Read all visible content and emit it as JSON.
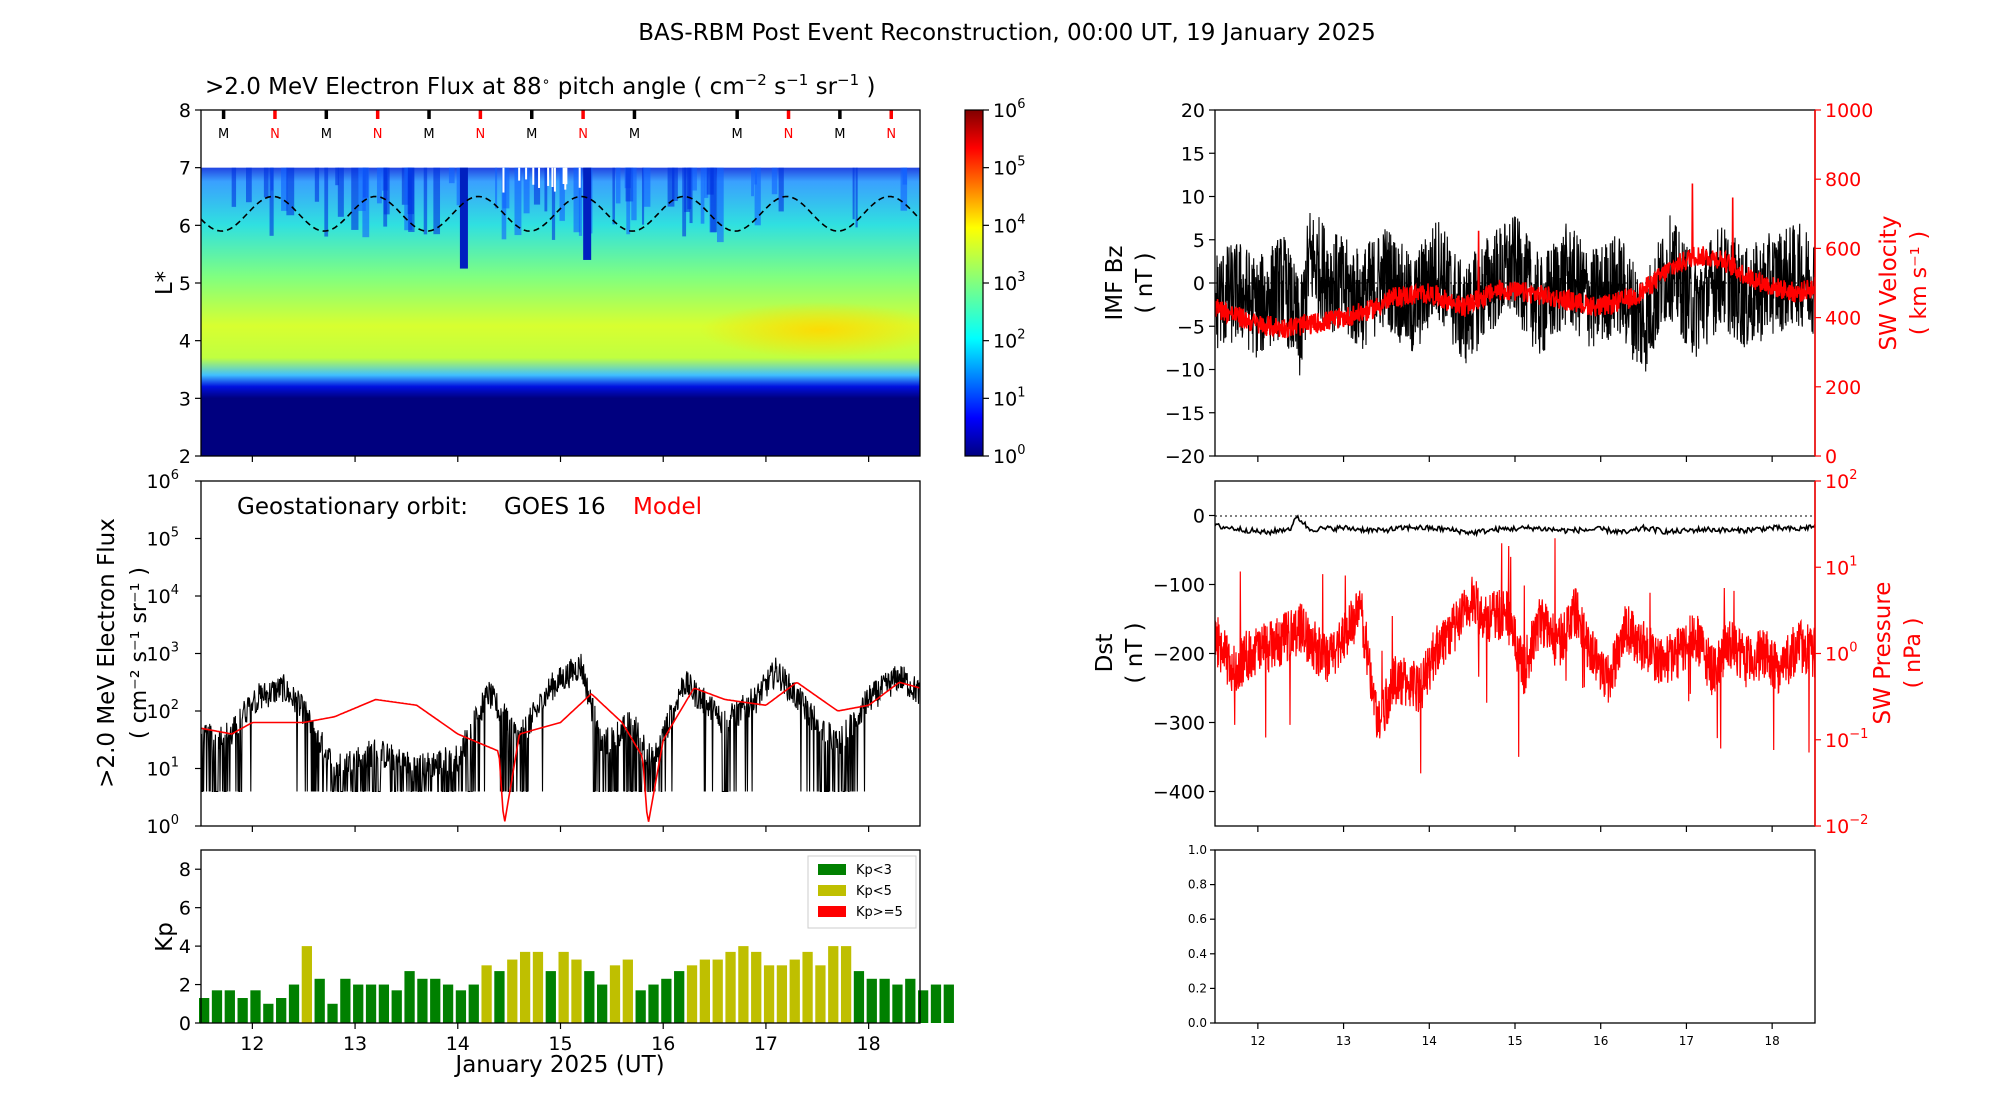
{
  "figure": {
    "title": "BAS-RBM Post Event Reconstruction, 00:00 UT, 19 January 2025",
    "xlabel": "January 2025 (UT)",
    "x_ticks": [
      "12",
      "13",
      "14",
      "15",
      "16",
      "17",
      "18"
    ]
  },
  "chart_data": [
    {
      "id": "flux_map",
      "type": "heatmap",
      "title_main": ">2.0 MeV Electron Flux at 88",
      "title_deg": "∘",
      "title_tail": " pitch angle ( cm",
      "title_units": [
        {
          "base": " cm",
          "exp": "−2"
        },
        {
          "base": " s",
          "exp": "−1"
        },
        {
          "base": " sr",
          "exp": "−1"
        }
      ],
      "title_close": " )",
      "ylabel": "L*",
      "xlim": [
        11.5,
        18.5
      ],
      "ylim": [
        2,
        8
      ],
      "y_ticks": [
        "2",
        "3",
        "4",
        "5",
        "6",
        "7",
        "8"
      ],
      "colorbar_ticks": [
        "0",
        "1",
        "2",
        "3",
        "4",
        "5",
        "6"
      ],
      "colorbar_base": "10",
      "colormap": "jet",
      "markers": [
        {
          "x": 11.72,
          "label": "M",
          "color": "#000000"
        },
        {
          "x": 12.22,
          "label": "N",
          "color": "#ff0000"
        },
        {
          "x": 12.72,
          "label": "M",
          "color": "#000000"
        },
        {
          "x": 13.22,
          "label": "N",
          "color": "#ff0000"
        },
        {
          "x": 13.72,
          "label": "M",
          "color": "#000000"
        },
        {
          "x": 14.22,
          "label": "N",
          "color": "#ff0000"
        },
        {
          "x": 14.72,
          "label": "M",
          "color": "#000000"
        },
        {
          "x": 15.22,
          "label": "N",
          "color": "#ff0000"
        },
        {
          "x": 15.72,
          "label": "M",
          "color": "#000000"
        },
        {
          "x": 16.72,
          "label": "M",
          "color": "#000000"
        },
        {
          "x": 17.22,
          "label": "N",
          "color": "#ff0000"
        },
        {
          "x": 17.72,
          "label": "M",
          "color": "#000000"
        },
        {
          "x": 18.22,
          "label": "N",
          "color": "#ff0000"
        }
      ],
      "lstar_contour": {
        "mean": 6.2,
        "amplitude": 0.3,
        "period_days": 1.0,
        "style": "dashed"
      }
    },
    {
      "id": "goes_flux",
      "type": "line",
      "annotation_prefix": "Geostationary orbit:",
      "annotation_sat": "GOES 16",
      "annotation_model": "Model",
      "ylabel_line1": ">2.0 MeV Electron Flux",
      "ylabel_line2": "( cm⁻² s⁻¹ sr⁻¹ )",
      "y_scale": "log",
      "ylim_exp": [
        0,
        6
      ],
      "y_tick_exps": [
        "0",
        "1",
        "2",
        "3",
        "4",
        "5",
        "6"
      ],
      "y_tick_base": "10",
      "series": [
        {
          "name": "GOES 16",
          "color": "#000000",
          "x": [
            11.5,
            11.8,
            12.0,
            12.3,
            12.5,
            12.8,
            13.2,
            13.6,
            14.0,
            14.3,
            14.6,
            14.9,
            15.2,
            15.4,
            15.7,
            15.9,
            16.2,
            16.6,
            16.9,
            17.1,
            17.4,
            17.7,
            18.0,
            18.3,
            18.5
          ],
          "y_log": [
            1.5,
            1.6,
            2.2,
            2.4,
            2.0,
            1.0,
            1.3,
            1.0,
            1.2,
            2.3,
            1.5,
            2.4,
            2.8,
            1.4,
            1.8,
            1.1,
            2.5,
            1.8,
            2.2,
            2.7,
            2.0,
            1.4,
            2.2,
            2.6,
            2.3
          ]
        },
        {
          "name": "Model",
          "color": "#ff0000",
          "x": [
            11.5,
            11.8,
            12.0,
            12.5,
            12.8,
            13.2,
            13.6,
            14.0,
            14.4,
            14.45,
            14.6,
            15.0,
            15.3,
            15.6,
            15.8,
            15.85,
            16.0,
            16.3,
            16.6,
            17.0,
            17.3,
            17.7,
            18.0,
            18.3,
            18.5
          ],
          "y_log": [
            1.7,
            1.6,
            1.8,
            1.8,
            1.9,
            2.2,
            2.1,
            1.6,
            1.3,
            0.0,
            1.6,
            1.8,
            2.3,
            1.8,
            1.2,
            0.0,
            1.5,
            2.4,
            2.2,
            2.1,
            2.5,
            2.0,
            2.1,
            2.5,
            2.4
          ]
        }
      ]
    },
    {
      "id": "kp",
      "type": "bar",
      "ylabel": "Kp",
      "ylim": [
        0,
        9
      ],
      "y_ticks": [
        "0",
        "2",
        "4",
        "6",
        "8"
      ],
      "bar_width_days": 0.1,
      "start_day": 11.5,
      "step_days": 0.125,
      "values": [
        1.3,
        1.7,
        1.7,
        1.3,
        1.7,
        1.0,
        1.3,
        2.0,
        4.0,
        2.3,
        1.0,
        2.3,
        2.0,
        2.0,
        2.0,
        1.7,
        2.7,
        2.3,
        2.3,
        2.0,
        1.7,
        2.0,
        3.0,
        2.7,
        3.3,
        3.7,
        3.7,
        2.7,
        3.7,
        3.3,
        2.7,
        2.0,
        3.0,
        3.3,
        1.7,
        2.0,
        2.3,
        2.7,
        3.0,
        3.3,
        3.3,
        3.7,
        4.0,
        3.7,
        3.0,
        3.0,
        3.3,
        3.7,
        3.0,
        4.0,
        4.0,
        2.7,
        2.3,
        2.3,
        2.0,
        2.3,
        1.7,
        2.0,
        2.0
      ],
      "legend": [
        {
          "label": "Kp<3",
          "color": "#008000"
        },
        {
          "label": "Kp<5",
          "color": "#bfbf00"
        },
        {
          "label": "Kp>=5",
          "color": "#ff0000"
        }
      ],
      "legend_position": "top-right"
    },
    {
      "id": "imf",
      "type": "line",
      "ylabel_line1": "IMF Bz",
      "ylabel_line2": "( nT )",
      "ylim": [
        -20,
        20
      ],
      "y_ticks": [
        "−20",
        "−15",
        "−10",
        "−5",
        "0",
        "5",
        "10",
        "15",
        "20"
      ],
      "y2label_line1": "SW Velocity",
      "y2label_line2": "( km s⁻¹ )",
      "y2lim": [
        0,
        1000
      ],
      "y2_ticks": [
        "0",
        "200",
        "400",
        "600",
        "800",
        "1000"
      ],
      "series": [
        {
          "name": "IMF Bz",
          "color": "#000000",
          "x": [
            11.5,
            11.8,
            12.0,
            12.3,
            12.5,
            12.6,
            12.9,
            13.2,
            13.5,
            13.8,
            14.1,
            14.4,
            14.7,
            15.0,
            15.3,
            15.6,
            15.9,
            16.2,
            16.5,
            16.8,
            17.1,
            17.4,
            17.7,
            18.0,
            18.3,
            18.5
          ],
          "y": [
            -2,
            -1,
            -3,
            0,
            -6,
            3,
            0,
            -2,
            1,
            -3,
            2,
            -4,
            0,
            2,
            -3,
            1,
            -2,
            0,
            -5,
            2,
            -3,
            1,
            -2,
            0,
            1,
            0
          ]
        },
        {
          "name": "SW Velocity",
          "color": "#ff0000",
          "axis": "right",
          "x": [
            11.5,
            11.8,
            12.0,
            12.3,
            12.6,
            13.0,
            13.3,
            13.6,
            14.0,
            14.4,
            14.8,
            15.2,
            15.6,
            16.0,
            16.4,
            16.8,
            17.1,
            17.4,
            17.7,
            18.0,
            18.3,
            18.5
          ],
          "y": [
            430,
            400,
            380,
            370,
            380,
            400,
            420,
            460,
            470,
            430,
            480,
            470,
            450,
            430,
            460,
            540,
            580,
            570,
            520,
            490,
            470,
            490
          ]
        }
      ]
    },
    {
      "id": "dst",
      "type": "line",
      "ylabel_line1": "Dst",
      "ylabel_line2": "( nT )",
      "ylim": [
        -450,
        50
      ],
      "y_ticks": [
        "−400",
        "−300",
        "−200",
        "−100",
        "0"
      ],
      "y2label_line1": "SW Pressure",
      "y2label_line2": "( nPa )",
      "y2_scale": "log",
      "y2lim_exp": [
        -2,
        2
      ],
      "y2_tick_exps": [
        "−2",
        "−1",
        "0",
        "1",
        "2"
      ],
      "y2_tick_base": "10",
      "series": [
        {
          "name": "Dst",
          "color": "#000000",
          "x": [
            11.5,
            11.8,
            12.1,
            12.4,
            12.45,
            12.6,
            13.0,
            13.4,
            13.8,
            14.2,
            14.5,
            14.8,
            15.2,
            15.6,
            16.0,
            16.3,
            16.5,
            16.8,
            17.2,
            17.6,
            18.0,
            18.3,
            18.5
          ],
          "y": [
            -15,
            -20,
            -25,
            -18,
            0,
            -20,
            -18,
            -22,
            -17,
            -20,
            -25,
            -20,
            -18,
            -22,
            -20,
            -25,
            -18,
            -24,
            -20,
            -22,
            -18,
            -20,
            -15
          ]
        },
        {
          "name": "SW Pressure",
          "color": "#ff0000",
          "axis": "right",
          "x": [
            11.5,
            11.7,
            11.9,
            12.2,
            12.5,
            12.8,
            13.0,
            13.2,
            13.4,
            13.6,
            13.9,
            14.1,
            14.3,
            14.5,
            14.7,
            14.9,
            15.1,
            15.3,
            15.5,
            15.7,
            15.9,
            16.1,
            16.3,
            16.5,
            16.7,
            16.9,
            17.1,
            17.3,
            17.5,
            17.7,
            17.9,
            18.1,
            18.3,
            18.5
          ],
          "y_log": [
            0.2,
            -0.2,
            0.0,
            0.1,
            0.3,
            -0.1,
            0.2,
            0.5,
            -0.8,
            -0.3,
            -0.4,
            0.1,
            0.3,
            0.6,
            0.4,
            0.5,
            -0.2,
            0.4,
            0.1,
            0.5,
            0.0,
            -0.3,
            0.3,
            0.1,
            -0.1,
            0.0,
            0.2,
            -0.2,
            0.1,
            -0.1,
            0.0,
            -0.2,
            0.1,
            0.0
          ]
        }
      ]
    },
    {
      "id": "empty_panel",
      "type": "line",
      "ylim": [
        0,
        1
      ],
      "y_ticks": [
        "0.0",
        "0.2",
        "0.4",
        "0.6",
        "0.8",
        "1.0"
      ],
      "x_ticks": [
        "12",
        "13",
        "14",
        "15",
        "16",
        "17",
        "18"
      ]
    }
  ]
}
